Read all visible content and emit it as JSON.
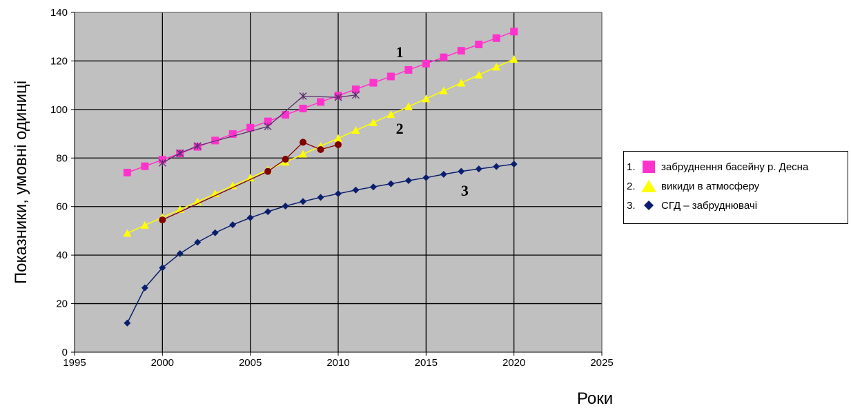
{
  "chart_data": {
    "type": "line",
    "xlabel": "Роки",
    "ylabel": "Показники, умовні одиниці",
    "xlim": [
      1995,
      2025
    ],
    "ylim": [
      0,
      140
    ],
    "xticks": [
      1995,
      2000,
      2005,
      2010,
      2015,
      2020,
      2025
    ],
    "yticks": [
      0,
      20,
      40,
      60,
      80,
      100,
      120,
      140
    ],
    "grid": true,
    "legend_position": "right",
    "plot_background": "#c0c0c0",
    "series": [
      {
        "name": "забруднення басейну р. Десна",
        "legend_number": "1.",
        "curve_label": "1",
        "color": "#ff33cc",
        "marker": "square",
        "x": [
          1998,
          1999,
          2000,
          2001,
          2002,
          2003,
          2004,
          2005,
          2006,
          2007,
          2008,
          2009,
          2010,
          2011,
          2012,
          2013,
          2014,
          2015,
          2016,
          2017,
          2018,
          2019,
          2020
        ],
        "y": [
          74,
          76.6,
          79.3,
          81.9,
          84.6,
          87.2,
          89.9,
          92.5,
          95.1,
          97.8,
          100.4,
          103.1,
          105.7,
          108.3,
          111,
          113.6,
          116.3,
          118.9,
          121.5,
          124.2,
          126.8,
          129.4,
          132.1
        ]
      },
      {
        "name": "викиди в атмосферу",
        "legend_number": "2.",
        "curve_label": "2",
        "color": "#ffff00",
        "marker": "triangle",
        "x": [
          1998,
          1999,
          2000,
          2001,
          2002,
          2003,
          2004,
          2005,
          2006,
          2007,
          2008,
          2009,
          2010,
          2011,
          2012,
          2013,
          2014,
          2015,
          2016,
          2017,
          2018,
          2019,
          2020
        ],
        "y": [
          49,
          52.3,
          55.5,
          58.8,
          62,
          65.3,
          68.6,
          71.8,
          75.1,
          78.3,
          81.6,
          84.9,
          88.1,
          91.4,
          94.6,
          97.9,
          101.2,
          104.4,
          107.7,
          110.9,
          114.2,
          117.5,
          120.7
        ]
      },
      {
        "name": "СГД – забруднювачі",
        "legend_number": "3.",
        "curve_label": "3",
        "color": "#0b1e6e",
        "marker": "diamond",
        "x": [
          1998,
          1999,
          2000,
          2001,
          2002,
          2003,
          2004,
          2005,
          2006,
          2007,
          2008,
          2009,
          2010,
          2011,
          2012,
          2013,
          2014,
          2015,
          2016,
          2017,
          2018,
          2019,
          2020
        ],
        "y": [
          12,
          26.5,
          34.8,
          40.6,
          45.3,
          49.2,
          52.5,
          55.4,
          57.9,
          60.2,
          62.1,
          63.8,
          65.3,
          66.8,
          68.1,
          69.4,
          70.7,
          71.9,
          73.3,
          74.5,
          75.5,
          76.5,
          77.5
        ]
      }
    ],
    "observed": [
      {
        "color": "#800000",
        "marker": "circle",
        "x": [
          2000,
          2006,
          2007,
          2008,
          2009,
          2010
        ],
        "y": [
          54.5,
          74.5,
          79.5,
          86.5,
          83.5,
          85.5
        ]
      },
      {
        "color": "#5a2d6e",
        "marker": "star",
        "x": [
          2000,
          2001,
          2002,
          2006,
          2008,
          2010,
          2011
        ],
        "y": [
          78,
          82,
          85,
          93,
          105.5,
          105,
          106
        ]
      }
    ]
  }
}
